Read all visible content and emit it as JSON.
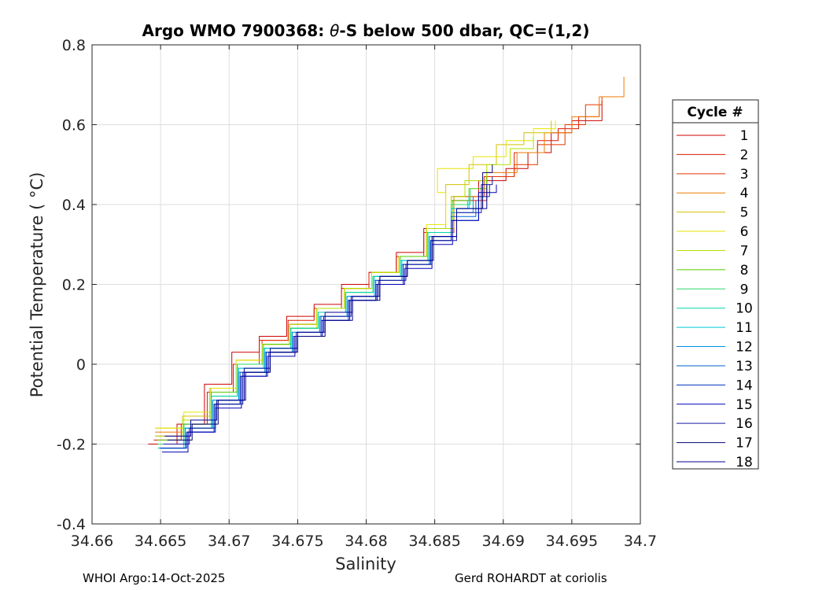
{
  "title_prefix": "Argo WMO 7900368: ",
  "title_theta": "θ",
  "title_suffix": "-S below 500 dbar,  QC=(1,2)",
  "footer": {
    "left": "WHOI Argo:14-Oct-2025",
    "right": "Gerd ROHARDT at coriolis"
  },
  "chart_data": {
    "type": "line",
    "title": "Argo WMO 7900368: θ-S below 500 dbar,  QC=(1,2)",
    "xlabel": "Salinity",
    "ylabel": "Potential Temperature ( °C)",
    "xlim": [
      34.66,
      34.7
    ],
    "ylim": [
      -0.4,
      0.8
    ],
    "x_ticks": [
      "34.66",
      "34.665",
      "34.67",
      "34.675",
      "34.68",
      "34.685",
      "34.69",
      "34.695",
      "34.7"
    ],
    "y_ticks": [
      "-0.4",
      "-0.2",
      "0",
      "0.2",
      "0.4",
      "0.6",
      "0.8"
    ],
    "grid": true,
    "legend_title": "Cycle #",
    "legend_position": "outside-right",
    "series": [
      {
        "name": "1",
        "color": "#cc0000",
        "points": [
          [
            34.6641,
            -0.2
          ],
          [
            34.6662,
            -0.15
          ],
          [
            34.6682,
            -0.05
          ],
          [
            34.6702,
            0.03
          ],
          [
            34.6722,
            0.07
          ],
          [
            34.6742,
            0.12
          ],
          [
            34.6762,
            0.15
          ],
          [
            34.6782,
            0.2
          ],
          [
            34.6802,
            0.23
          ],
          [
            34.6822,
            0.28
          ],
          [
            34.6842,
            0.34
          ],
          [
            34.6862,
            0.42
          ],
          [
            34.6882,
            0.46
          ],
          [
            34.6902,
            0.49
          ],
          [
            34.6918,
            0.53
          ],
          [
            34.6935,
            0.58
          ],
          [
            34.695,
            0.61
          ],
          [
            34.6972,
            0.66
          ]
        ]
      },
      {
        "name": "2",
        "color": "#dd1a00",
        "points": [
          [
            34.6645,
            -0.19
          ],
          [
            34.6665,
            -0.15
          ],
          [
            34.6684,
            -0.07
          ],
          [
            34.6703,
            0.0
          ],
          [
            34.6722,
            0.06
          ],
          [
            34.6743,
            0.11
          ],
          [
            34.6762,
            0.14
          ],
          [
            34.6782,
            0.19
          ],
          [
            34.6802,
            0.23
          ],
          [
            34.6822,
            0.27
          ],
          [
            34.6842,
            0.33
          ],
          [
            34.6862,
            0.41
          ],
          [
            34.6888,
            0.47
          ],
          [
            34.6908,
            0.53
          ],
          [
            34.6925,
            0.56
          ],
          [
            34.694,
            0.59
          ],
          [
            34.6955,
            0.62
          ],
          [
            34.697,
            0.65
          ]
        ]
      },
      {
        "name": "3",
        "color": "#e63300",
        "points": [
          [
            34.6646,
            -0.18
          ],
          [
            34.6666,
            -0.14
          ],
          [
            34.6686,
            -0.07
          ],
          [
            34.6705,
            0.0
          ],
          [
            34.6724,
            0.06
          ],
          [
            34.6744,
            0.1
          ],
          [
            34.6764,
            0.14
          ],
          [
            34.6784,
            0.19
          ],
          [
            34.6804,
            0.23
          ],
          [
            34.6824,
            0.27
          ],
          [
            34.6844,
            0.33
          ],
          [
            34.6864,
            0.42
          ],
          [
            34.6886,
            0.47
          ],
          [
            34.6908,
            0.5
          ],
          [
            34.6925,
            0.55
          ],
          [
            34.6945,
            0.6
          ],
          [
            34.696,
            0.65
          ],
          [
            34.6972,
            0.67
          ]
        ]
      },
      {
        "name": "4",
        "color": "#ee7a00",
        "points": [
          [
            34.6646,
            -0.17
          ],
          [
            34.6666,
            -0.13
          ],
          [
            34.6686,
            -0.06
          ],
          [
            34.6705,
            0.01
          ],
          [
            34.6724,
            0.05
          ],
          [
            34.6744,
            0.1
          ],
          [
            34.6764,
            0.14
          ],
          [
            34.6784,
            0.19
          ],
          [
            34.6804,
            0.23
          ],
          [
            34.6824,
            0.27
          ],
          [
            34.6844,
            0.34
          ],
          [
            34.6864,
            0.42
          ],
          [
            34.6888,
            0.48
          ],
          [
            34.691,
            0.53
          ],
          [
            34.693,
            0.58
          ],
          [
            34.695,
            0.62
          ],
          [
            34.697,
            0.67
          ],
          [
            34.6988,
            0.72
          ]
        ]
      },
      {
        "name": "5",
        "color": "#d4c000",
        "points": [
          [
            34.6646,
            -0.16
          ],
          [
            34.6666,
            -0.13
          ],
          [
            34.6686,
            -0.06
          ],
          [
            34.6705,
            0.01
          ],
          [
            34.6724,
            0.05
          ],
          [
            34.6744,
            0.09
          ],
          [
            34.6764,
            0.14
          ],
          [
            34.6784,
            0.19
          ],
          [
            34.6804,
            0.23
          ],
          [
            34.6824,
            0.27
          ],
          [
            34.6844,
            0.34
          ],
          [
            34.6858,
            0.45
          ],
          [
            34.6875,
            0.5
          ],
          [
            34.6895,
            0.55
          ],
          [
            34.6915,
            0.58
          ],
          [
            34.6935,
            0.61
          ]
        ]
      },
      {
        "name": "6",
        "color": "#e6e600",
        "points": [
          [
            34.6647,
            -0.16
          ],
          [
            34.6667,
            -0.12
          ],
          [
            34.6687,
            -0.06
          ],
          [
            34.6705,
            0.01
          ],
          [
            34.6724,
            0.05
          ],
          [
            34.6744,
            0.09
          ],
          [
            34.6764,
            0.14
          ],
          [
            34.6784,
            0.19
          ],
          [
            34.6804,
            0.23
          ],
          [
            34.6824,
            0.27
          ],
          [
            34.6844,
            0.35
          ],
          [
            34.6858,
            0.43
          ],
          [
            34.6852,
            0.49
          ],
          [
            34.6878,
            0.52
          ],
          [
            34.6902,
            0.56
          ],
          [
            34.6922,
            0.59
          ],
          [
            34.6938,
            0.61
          ]
        ]
      },
      {
        "name": "7",
        "color": "#b0e000",
        "points": [
          [
            34.6646,
            -0.18
          ],
          [
            34.6666,
            -0.14
          ],
          [
            34.6686,
            -0.07
          ],
          [
            34.6705,
            0.0
          ],
          [
            34.6724,
            0.05
          ],
          [
            34.6744,
            0.1
          ],
          [
            34.6764,
            0.14
          ],
          [
            34.6784,
            0.19
          ],
          [
            34.6804,
            0.23
          ],
          [
            34.6824,
            0.27
          ],
          [
            34.6844,
            0.34
          ],
          [
            34.6862,
            0.42
          ],
          [
            34.6872,
            0.46
          ],
          [
            34.6888,
            0.5
          ],
          [
            34.6905,
            0.54
          ],
          [
            34.6922,
            0.57
          ]
        ]
      },
      {
        "name": "8",
        "color": "#55cc00",
        "points": [
          [
            34.6648,
            -0.19
          ],
          [
            34.6667,
            -0.15
          ],
          [
            34.6687,
            -0.07
          ],
          [
            34.6706,
            0.0
          ],
          [
            34.6725,
            0.05
          ],
          [
            34.6745,
            0.09
          ],
          [
            34.6765,
            0.13
          ],
          [
            34.6785,
            0.18
          ],
          [
            34.6805,
            0.22
          ],
          [
            34.6825,
            0.27
          ],
          [
            34.6845,
            0.33
          ],
          [
            34.6863,
            0.41
          ],
          [
            34.6875,
            0.44
          ],
          [
            34.6888,
            0.47
          ]
        ]
      },
      {
        "name": "9",
        "color": "#2ed66a",
        "points": [
          [
            34.6648,
            -0.2
          ],
          [
            34.6667,
            -0.15
          ],
          [
            34.6687,
            -0.08
          ],
          [
            34.6706,
            0.0
          ],
          [
            34.6725,
            0.04
          ],
          [
            34.6745,
            0.09
          ],
          [
            34.6765,
            0.13
          ],
          [
            34.6785,
            0.18
          ],
          [
            34.6805,
            0.22
          ],
          [
            34.6825,
            0.26
          ],
          [
            34.6845,
            0.33
          ],
          [
            34.6862,
            0.4
          ],
          [
            34.6876,
            0.44
          ]
        ]
      },
      {
        "name": "10",
        "color": "#00d8a8",
        "points": [
          [
            34.6648,
            -0.21
          ],
          [
            34.6667,
            -0.16
          ],
          [
            34.6687,
            -0.08
          ],
          [
            34.6706,
            -0.01
          ],
          [
            34.6725,
            0.04
          ],
          [
            34.6745,
            0.09
          ],
          [
            34.6765,
            0.13
          ],
          [
            34.6785,
            0.18
          ],
          [
            34.6805,
            0.22
          ],
          [
            34.6825,
            0.26
          ],
          [
            34.6845,
            0.33
          ],
          [
            34.6862,
            0.39
          ],
          [
            34.6874,
            0.41
          ]
        ]
      },
      {
        "name": "11",
        "color": "#00c8d8",
        "points": [
          [
            34.6649,
            -0.21
          ],
          [
            34.6668,
            -0.16
          ],
          [
            34.6688,
            -0.09
          ],
          [
            34.6707,
            -0.01
          ],
          [
            34.6726,
            0.04
          ],
          [
            34.6746,
            0.08
          ],
          [
            34.6766,
            0.12
          ],
          [
            34.6786,
            0.17
          ],
          [
            34.6806,
            0.22
          ],
          [
            34.6826,
            0.26
          ],
          [
            34.6846,
            0.32
          ],
          [
            34.6862,
            0.39
          ],
          [
            34.6875,
            0.42
          ]
        ]
      },
      {
        "name": "12",
        "color": "#0090e0",
        "points": [
          [
            34.6649,
            -0.21
          ],
          [
            34.6668,
            -0.16
          ],
          [
            34.6688,
            -0.09
          ],
          [
            34.6707,
            -0.02
          ],
          [
            34.6726,
            0.03
          ],
          [
            34.6746,
            0.08
          ],
          [
            34.6766,
            0.12
          ],
          [
            34.6786,
            0.17
          ],
          [
            34.6806,
            0.21
          ],
          [
            34.6826,
            0.25
          ],
          [
            34.6846,
            0.32
          ],
          [
            34.6862,
            0.38
          ],
          [
            34.6878,
            0.42
          ]
        ]
      },
      {
        "name": "13",
        "color": "#0060d0",
        "points": [
          [
            34.665,
            -0.21
          ],
          [
            34.6669,
            -0.17
          ],
          [
            34.6689,
            -0.1
          ],
          [
            34.6708,
            -0.02
          ],
          [
            34.6727,
            0.03
          ],
          [
            34.6747,
            0.07
          ],
          [
            34.6767,
            0.12
          ],
          [
            34.6787,
            0.16
          ],
          [
            34.6807,
            0.21
          ],
          [
            34.6827,
            0.25
          ],
          [
            34.6847,
            0.31
          ],
          [
            34.6862,
            0.37
          ],
          [
            34.688,
            0.41
          ]
        ]
      },
      {
        "name": "14",
        "color": "#0030c0",
        "points": [
          [
            34.665,
            -0.21
          ],
          [
            34.6669,
            -0.17
          ],
          [
            34.6689,
            -0.1
          ],
          [
            34.6708,
            -0.03
          ],
          [
            34.6727,
            0.03
          ],
          [
            34.6747,
            0.07
          ],
          [
            34.6767,
            0.11
          ],
          [
            34.6787,
            0.16
          ],
          [
            34.6807,
            0.2
          ],
          [
            34.6827,
            0.25
          ],
          [
            34.6847,
            0.31
          ],
          [
            34.6862,
            0.36
          ],
          [
            34.6882,
            0.42
          ],
          [
            34.689,
            0.45
          ]
        ]
      },
      {
        "name": "15",
        "color": "#0000b8",
        "points": [
          [
            34.6651,
            -0.22
          ],
          [
            34.667,
            -0.17
          ],
          [
            34.669,
            -0.11
          ],
          [
            34.6709,
            -0.03
          ],
          [
            34.6728,
            0.02
          ],
          [
            34.6748,
            0.07
          ],
          [
            34.6768,
            0.11
          ],
          [
            34.6788,
            0.16
          ],
          [
            34.6808,
            0.2
          ],
          [
            34.6828,
            0.24
          ],
          [
            34.6848,
            0.3
          ],
          [
            34.6863,
            0.36
          ],
          [
            34.6882,
            0.43
          ],
          [
            34.6895,
            0.45
          ]
        ]
      },
      {
        "name": "16",
        "color": "#1a1aa0",
        "points": [
          [
            34.6652,
            -0.2
          ],
          [
            34.6671,
            -0.16
          ],
          [
            34.669,
            -0.1
          ],
          [
            34.671,
            -0.02
          ],
          [
            34.6729,
            0.03
          ],
          [
            34.6749,
            0.08
          ],
          [
            34.6769,
            0.12
          ],
          [
            34.6789,
            0.17
          ],
          [
            34.6809,
            0.21
          ],
          [
            34.6829,
            0.25
          ],
          [
            34.6848,
            0.31
          ],
          [
            34.6866,
            0.38
          ],
          [
            34.6884,
            0.45
          ],
          [
            34.6892,
            0.47
          ]
        ]
      },
      {
        "name": "17",
        "color": "#00007a",
        "points": [
          [
            34.6655,
            -0.19
          ],
          [
            34.6673,
            -0.15
          ],
          [
            34.6692,
            -0.09
          ],
          [
            34.6712,
            -0.02
          ],
          [
            34.673,
            0.03
          ],
          [
            34.675,
            0.07
          ],
          [
            34.677,
            0.11
          ],
          [
            34.679,
            0.16
          ],
          [
            34.681,
            0.22
          ],
          [
            34.683,
            0.26
          ],
          [
            34.6848,
            0.32
          ],
          [
            34.6866,
            0.39
          ],
          [
            34.6885,
            0.48
          ],
          [
            34.6892,
            0.5
          ]
        ]
      },
      {
        "name": "18",
        "color": "#000098",
        "points": [
          [
            34.6653,
            -0.18
          ],
          [
            34.6672,
            -0.14
          ],
          [
            34.6691,
            -0.09
          ],
          [
            34.6711,
            -0.01
          ],
          [
            34.673,
            0.04
          ],
          [
            34.675,
            0.08
          ],
          [
            34.677,
            0.13
          ],
          [
            34.679,
            0.17
          ],
          [
            34.681,
            0.22
          ],
          [
            34.683,
            0.26
          ],
          [
            34.6849,
            0.32
          ],
          [
            34.6866,
            0.39
          ],
          [
            34.6888,
            0.45
          ]
        ]
      }
    ]
  }
}
